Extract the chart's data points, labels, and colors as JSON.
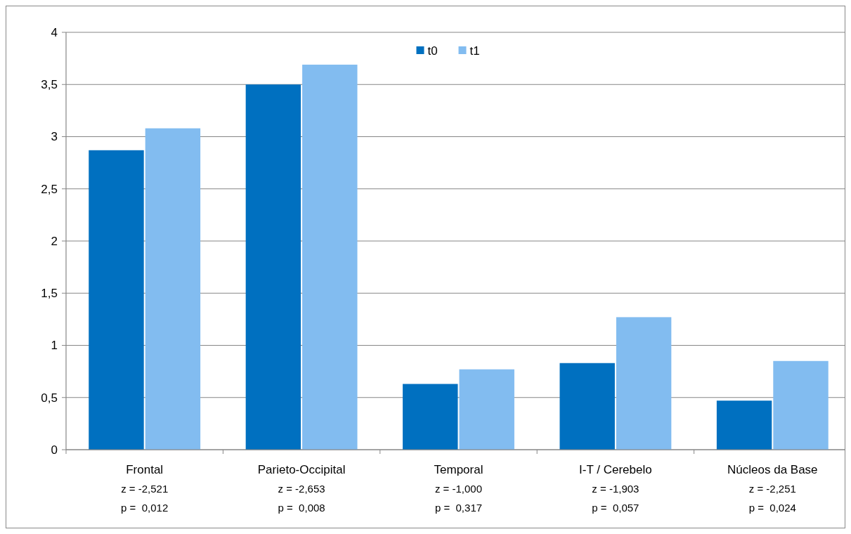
{
  "chart_data": {
    "type": "bar",
    "categories": [
      "Frontal",
      "Parieto-Occipital",
      "Temporal",
      "I-T / Cerebelo",
      "Núcleos da Base"
    ],
    "series": [
      {
        "name": "t0",
        "color": "#0070c0",
        "values": [
          2.87,
          3.5,
          0.63,
          0.83,
          0.47
        ]
      },
      {
        "name": "t1",
        "color": "#82bcf0",
        "values": [
          3.08,
          3.69,
          0.77,
          1.27,
          0.85
        ]
      }
    ],
    "ylim": [
      0,
      4
    ],
    "yticks": [
      0,
      {
        "value": 0.5,
        "label": "0,5"
      },
      1,
      {
        "value": 1.5,
        "label": "1,5"
      },
      2,
      {
        "value": 2.5,
        "label": "2,5"
      },
      3,
      {
        "value": 3.5,
        "label": "3,5"
      },
      4
    ],
    "grid": "y",
    "legend": "top",
    "annotations": [
      "z = -2,521",
      "p =  0,012",
      "z = -2,653",
      "p =  0,008",
      "z = -1,000",
      "p =  0,317",
      "z = -1,903",
      "p =  0,057",
      "z = -2,251",
      "p =  0,024"
    ]
  }
}
